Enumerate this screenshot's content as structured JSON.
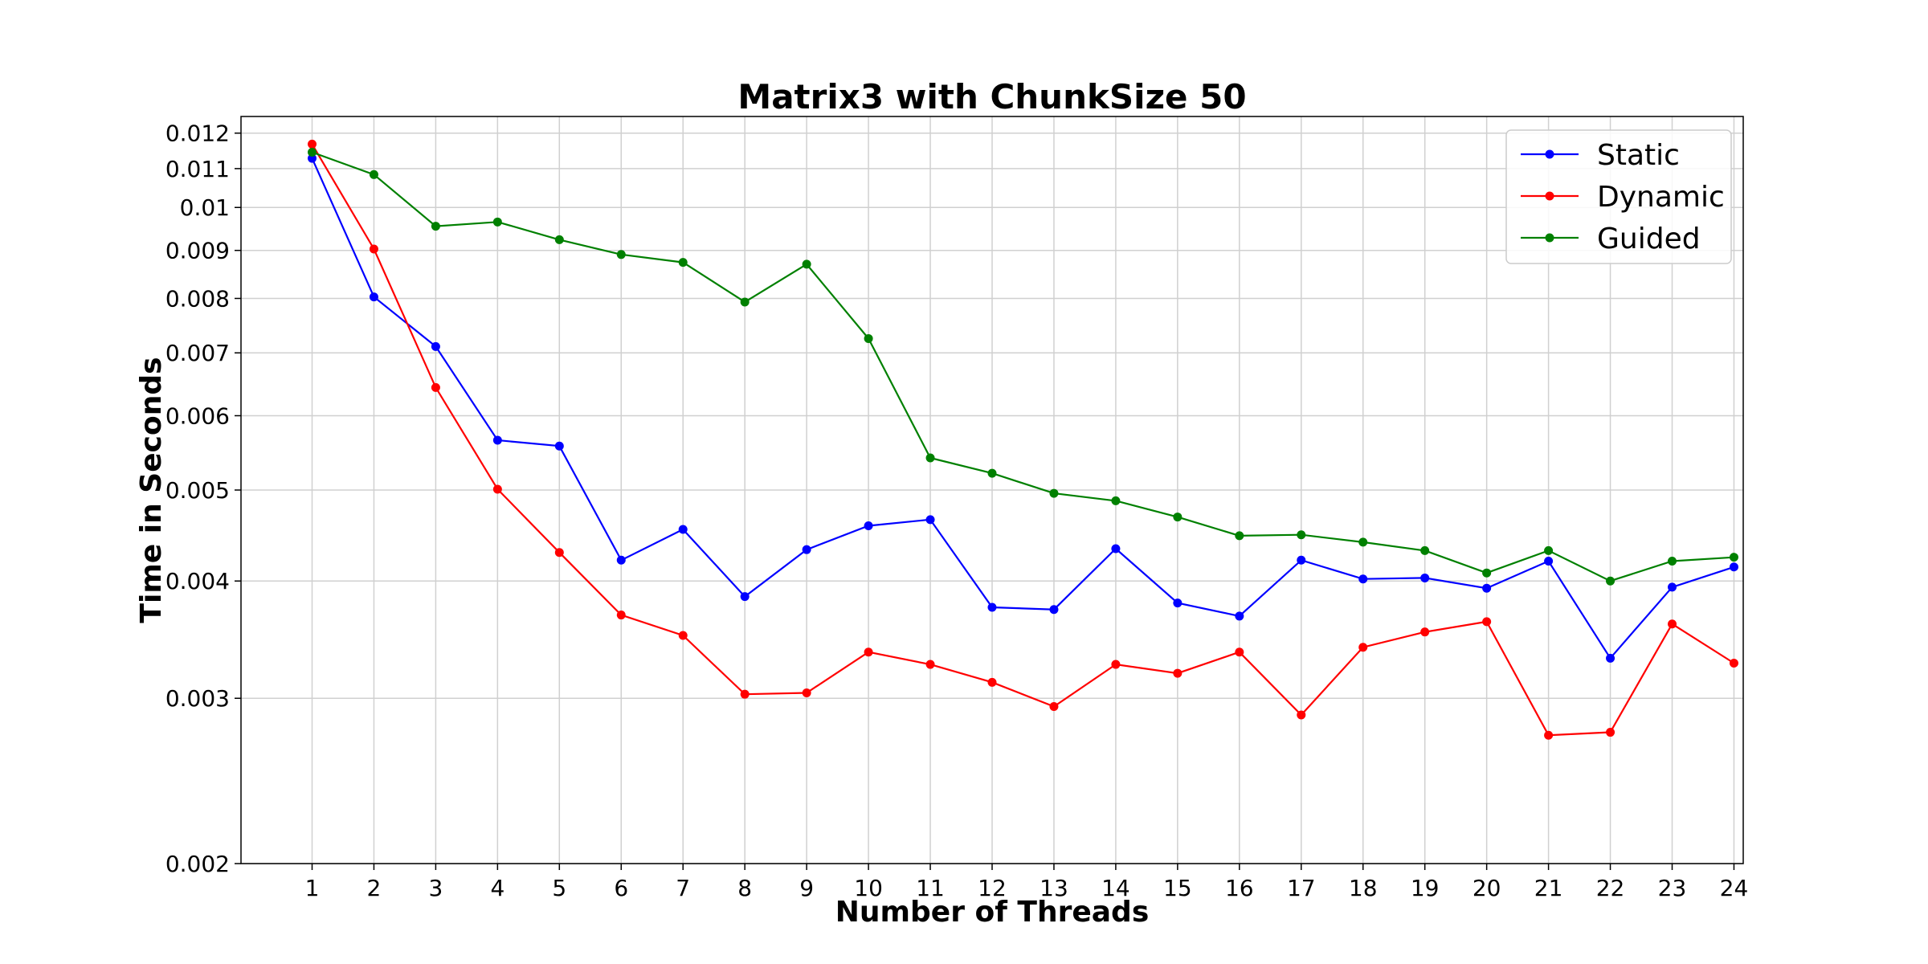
{
  "chart_data": {
    "type": "line",
    "title": "Matrix3 with ChunkSize 50",
    "xlabel": "Number of Threads",
    "ylabel": "Time in Seconds",
    "y_scale": "log",
    "ylim": [
      0.002,
      0.0125
    ],
    "xlim": [
      -0.15,
      24.15
    ],
    "x": [
      1,
      2,
      3,
      4,
      5,
      6,
      7,
      8,
      9,
      10,
      11,
      12,
      13,
      14,
      15,
      16,
      17,
      18,
      19,
      20,
      21,
      22,
      23,
      24
    ],
    "y_ticks": [
      0.002,
      0.003,
      0.004,
      0.005,
      0.006,
      0.007,
      0.008,
      0.009,
      0.01,
      0.011,
      0.012
    ],
    "y_tick_labels": [
      "0.002",
      "0.003",
      "0.004",
      "0.005",
      "0.006",
      "0.007",
      "0.008",
      "0.009",
      "0.01",
      "0.011",
      "0.012"
    ],
    "x_tick_labels": [
      "1",
      "2",
      "3",
      "4",
      "5",
      "6",
      "7",
      "8",
      "9",
      "10",
      "11",
      "12",
      "13",
      "14",
      "15",
      "16",
      "17",
      "18",
      "19",
      "20",
      "21",
      "22",
      "23",
      "24"
    ],
    "grid": true,
    "legend_position": "top-right",
    "series": [
      {
        "name": "Static",
        "color": "#0000ff",
        "values": [
          0.01128,
          0.00803,
          0.00711,
          0.00565,
          0.00557,
          0.00421,
          0.00454,
          0.00385,
          0.00432,
          0.00458,
          0.00465,
          0.00375,
          0.00373,
          0.00433,
          0.00379,
          0.00367,
          0.00421,
          0.00402,
          0.00403,
          0.00393,
          0.0042,
          0.00331,
          0.00394,
          0.00414
        ]
      },
      {
        "name": "Dynamic",
        "color": "#ff0000",
        "values": [
          0.01168,
          0.00903,
          0.00643,
          0.00501,
          0.00429,
          0.00368,
          0.0035,
          0.00303,
          0.00304,
          0.00336,
          0.00326,
          0.00312,
          0.00294,
          0.00326,
          0.00319,
          0.00336,
          0.00288,
          0.0034,
          0.00353,
          0.00362,
          0.00274,
          0.00276,
          0.0036,
          0.00327
        ]
      },
      {
        "name": "Guided",
        "color": "#008000",
        "values": [
          0.01145,
          0.01084,
          0.00955,
          0.00965,
          0.00924,
          0.00891,
          0.00874,
          0.00793,
          0.0087,
          0.00725,
          0.00541,
          0.00521,
          0.00496,
          0.00487,
          0.00468,
          0.00447,
          0.00448,
          0.0044,
          0.00431,
          0.00408,
          0.00431,
          0.004,
          0.0042,
          0.00424
        ]
      }
    ]
  }
}
